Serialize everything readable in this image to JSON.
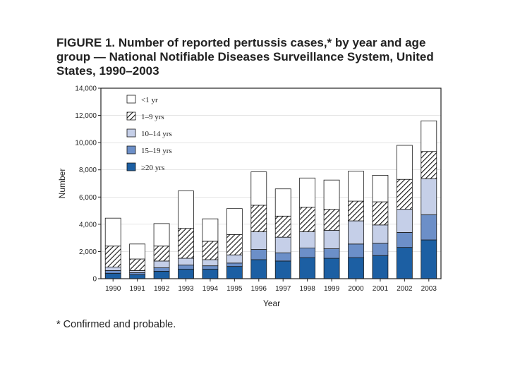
{
  "figure": {
    "title": "FIGURE 1. Number of reported pertussis cases,* by year and age group — National Notifiable Diseases Surveillance System, United States, 1990–2003",
    "footnote": "* Confirmed and probable."
  },
  "chart_data": {
    "type": "bar",
    "stacked": true,
    "title": "Number of reported pertussis cases,* by year and age group — National Notifiable Diseases Surveillance System, United States, 1990–2003",
    "xlabel": "Year",
    "ylabel": "Number",
    "ylim": [
      0,
      14000
    ],
    "yticks": [
      0,
      2000,
      4000,
      6000,
      8000,
      10000,
      12000,
      14000
    ],
    "ytick_labels": [
      "0",
      "2,000",
      "4,000",
      "6,000",
      "8,000",
      "10,000",
      "12,000",
      "14,000"
    ],
    "categories": [
      "1990",
      "1991",
      "1992",
      "1993",
      "1994",
      "1995",
      "1996",
      "1997",
      "1998",
      "1999",
      "2000",
      "2001",
      "2002",
      "2003"
    ],
    "legend_position": "top-left",
    "series": [
      {
        "name": "≥20 yrs",
        "color": "#1c5fa3",
        "pattern": "solid",
        "values": [
          400,
          300,
          550,
          700,
          700,
          900,
          1400,
          1300,
          1550,
          1500,
          1550,
          1700,
          2300,
          2850
        ]
      },
      {
        "name": "15–19 yrs",
        "color": "#6c8fc8",
        "pattern": "solid",
        "values": [
          200,
          150,
          250,
          300,
          250,
          250,
          750,
          600,
          700,
          700,
          1000,
          900,
          1100,
          1850
        ]
      },
      {
        "name": "10–14 yrs",
        "color": "#c5cfe8",
        "pattern": "solid",
        "values": [
          250,
          150,
          500,
          500,
          450,
          600,
          1300,
          1150,
          1200,
          1350,
          1700,
          1350,
          1700,
          2650
        ]
      },
      {
        "name": "1–9 yrs",
        "color": "#ffffff",
        "pattern": "hatch",
        "values": [
          1550,
          850,
          1100,
          2200,
          1350,
          1500,
          1950,
          1550,
          1800,
          1550,
          1450,
          1700,
          2200,
          2000
        ]
      },
      {
        "name": "<1 yr",
        "color": "#ffffff",
        "pattern": "solid",
        "values": [
          2050,
          1100,
          1650,
          2750,
          1650,
          1900,
          2450,
          2000,
          2150,
          2150,
          2200,
          1950,
          2500,
          2250
        ]
      }
    ],
    "legend_order": [
      "<1 yr",
      "1–9 yrs",
      "10–14 yrs",
      "15–19 yrs",
      "≥20 yrs"
    ]
  }
}
